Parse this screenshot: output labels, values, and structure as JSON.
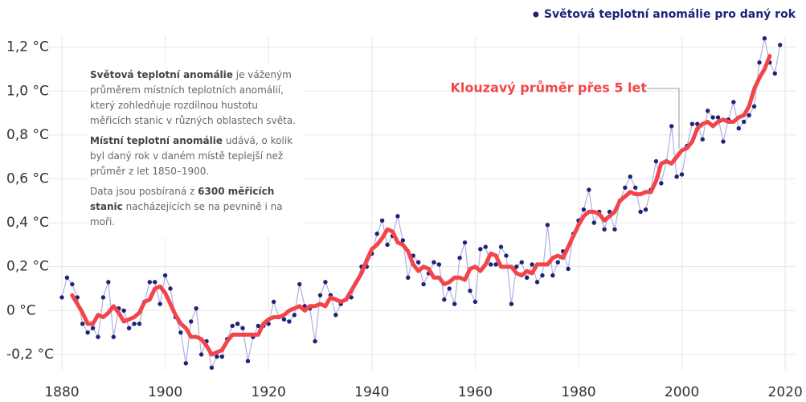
{
  "chart_data": {
    "type": "line",
    "note_paragraphs": [
      [
        {
          "text": "Světová teplotní anomálie",
          "bold": true
        },
        {
          "text": " je váženým průměrem místních teplotních anomálií, který zohledňuje rozdílnou hustotu měřicích stanic v různých oblastech světa.",
          "bold": false
        }
      ],
      [
        {
          "text": "Místní teplotní anomálie",
          "bold": true
        },
        {
          "text": " udává, o kolik byl daný rok v daném místě teplejší než průměr z let 1850–1900.",
          "bold": false
        }
      ],
      [
        {
          "text": "Data jsou posbíraná z ",
          "bold": false
        },
        {
          "text": "6300 měřicích stanic",
          "bold": true
        },
        {
          "text": " nacházejících se na pevnině i na moři.",
          "bold": false
        }
      ]
    ],
    "xlim": [
      1877,
      2022
    ],
    "xticks": [
      1880,
      1900,
      1920,
      1940,
      1960,
      1980,
      2000,
      2020
    ],
    "ylim": [
      -0.27,
      1.25
    ],
    "yticks": [
      {
        "value": -0.2,
        "label": "-0,2 °C"
      },
      {
        "value": 0,
        "label": "0 °C"
      },
      {
        "value": 0.2,
        "label": "0,2 °C"
      },
      {
        "value": 0.4,
        "label": "0,4 °C"
      },
      {
        "value": 0.6,
        "label": "0,6 °C"
      },
      {
        "value": 0.8,
        "label": "0,8 °C"
      },
      {
        "value": 1.0,
        "label": "1,0 °C"
      },
      {
        "value": 1.2,
        "label": "1,2 °C"
      }
    ],
    "grid": true,
    "legend": "top-right",
    "series": [
      {
        "name": "Světová teplotní anomálie pro daný rok",
        "color": "#1c2478",
        "line_color": "#aeb1dc",
        "markers": true,
        "x": [
          1880,
          1881,
          1882,
          1883,
          1884,
          1885,
          1886,
          1887,
          1888,
          1889,
          1890,
          1891,
          1892,
          1893,
          1894,
          1895,
          1896,
          1897,
          1898,
          1899,
          1900,
          1901,
          1902,
          1903,
          1904,
          1905,
          1906,
          1907,
          1908,
          1909,
          1910,
          1911,
          1912,
          1913,
          1914,
          1915,
          1916,
          1917,
          1918,
          1919,
          1920,
          1921,
          1922,
          1923,
          1924,
          1925,
          1926,
          1927,
          1928,
          1929,
          1930,
          1931,
          1932,
          1933,
          1934,
          1935,
          1936,
          1937,
          1938,
          1939,
          1940,
          1941,
          1942,
          1943,
          1944,
          1945,
          1946,
          1947,
          1948,
          1949,
          1950,
          1951,
          1952,
          1953,
          1954,
          1955,
          1956,
          1957,
          1958,
          1959,
          1960,
          1961,
          1962,
          1963,
          1964,
          1965,
          1966,
          1967,
          1968,
          1969,
          1970,
          1971,
          1972,
          1973,
          1974,
          1975,
          1976,
          1977,
          1978,
          1979,
          1980,
          1981,
          1982,
          1983,
          1984,
          1985,
          1986,
          1987,
          1988,
          1989,
          1990,
          1991,
          1992,
          1993,
          1994,
          1995,
          1996,
          1997,
          1998,
          1999,
          2000,
          2001,
          2002,
          2003,
          2004,
          2005,
          2006,
          2007,
          2008,
          2009,
          2010,
          2011,
          2012,
          2013,
          2014,
          2015,
          2016,
          2017,
          2018,
          2019
        ],
        "values": [
          0.06,
          0.15,
          0.12,
          0.06,
          -0.06,
          -0.1,
          -0.08,
          -0.12,
          0.06,
          0.13,
          -0.12,
          0.01,
          0.0,
          -0.08,
          -0.06,
          -0.06,
          0.04,
          0.13,
          0.13,
          0.03,
          0.16,
          0.1,
          -0.03,
          -0.1,
          -0.24,
          -0.05,
          0.01,
          -0.2,
          -0.14,
          -0.26,
          -0.21,
          -0.21,
          -0.13,
          -0.07,
          -0.06,
          -0.08,
          -0.23,
          -0.12,
          -0.07,
          -0.07,
          -0.06,
          0.04,
          -0.03,
          -0.04,
          -0.05,
          -0.02,
          0.12,
          0.02,
          0.01,
          -0.14,
          0.07,
          0.13,
          0.07,
          -0.02,
          0.03,
          0.05,
          0.06,
          0.13,
          0.2,
          0.2,
          0.26,
          0.35,
          0.41,
          0.3,
          0.34,
          0.43,
          0.32,
          0.15,
          0.25,
          0.22,
          0.12,
          0.17,
          0.22,
          0.21,
          0.05,
          0.1,
          0.03,
          0.24,
          0.31,
          0.09,
          0.04,
          0.28,
          0.29,
          0.21,
          0.21,
          0.29,
          0.25,
          0.03,
          0.2,
          0.22,
          0.15,
          0.21,
          0.13,
          0.16,
          0.39,
          0.16,
          0.22,
          0.27,
          0.19,
          0.35,
          0.41,
          0.46,
          0.55,
          0.4,
          0.45,
          0.37,
          0.45,
          0.37,
          0.5,
          0.56,
          0.61,
          0.56,
          0.45,
          0.46,
          0.55,
          0.68,
          0.58,
          0.68,
          0.84,
          0.61,
          0.62,
          0.75,
          0.85,
          0.85,
          0.78,
          0.91,
          0.88,
          0.88,
          0.77,
          0.87,
          0.95,
          0.83,
          0.86,
          0.89,
          0.93,
          1.13,
          1.24,
          1.13,
          1.08,
          1.21
        ]
      },
      {
        "name": "Klouzavý průměr přes 5 let",
        "color": "#f2454b",
        "markers": false,
        "x": [
          1882,
          1883,
          1884,
          1885,
          1886,
          1887,
          1888,
          1889,
          1890,
          1891,
          1892,
          1893,
          1894,
          1895,
          1896,
          1897,
          1898,
          1899,
          1900,
          1901,
          1902,
          1903,
          1904,
          1905,
          1906,
          1907,
          1908,
          1909,
          1910,
          1911,
          1912,
          1913,
          1914,
          1915,
          1916,
          1917,
          1918,
          1919,
          1920,
          1921,
          1922,
          1923,
          1924,
          1925,
          1926,
          1927,
          1928,
          1929,
          1930,
          1931,
          1932,
          1933,
          1934,
          1935,
          1936,
          1937,
          1938,
          1939,
          1940,
          1941,
          1942,
          1943,
          1944,
          1945,
          1946,
          1947,
          1948,
          1949,
          1950,
          1951,
          1952,
          1953,
          1954,
          1955,
          1956,
          1957,
          1958,
          1959,
          1960,
          1961,
          1962,
          1963,
          1964,
          1965,
          1966,
          1967,
          1968,
          1969,
          1970,
          1971,
          1972,
          1973,
          1974,
          1975,
          1976,
          1977,
          1978,
          1979,
          1980,
          1981,
          1982,
          1983,
          1984,
          1985,
          1986,
          1987,
          1988,
          1989,
          1990,
          1991,
          1992,
          1993,
          1994,
          1995,
          1996,
          1997,
          1998,
          1999,
          2000,
          2001,
          2002,
          2003,
          2004,
          2005,
          2006,
          2007,
          2008,
          2009,
          2010,
          2011,
          2012,
          2013,
          2014,
          2015,
          2016,
          2017
        ],
        "values": [
          0.07,
          0.03,
          -0.01,
          -0.06,
          -0.06,
          -0.02,
          -0.03,
          -0.01,
          0.02,
          -0.01,
          -0.05,
          -0.04,
          -0.03,
          -0.01,
          0.04,
          0.05,
          0.1,
          0.11,
          0.08,
          0.03,
          -0.02,
          -0.06,
          -0.08,
          -0.12,
          -0.12,
          -0.13,
          -0.16,
          -0.2,
          -0.19,
          -0.18,
          -0.14,
          -0.11,
          -0.11,
          -0.11,
          -0.11,
          -0.11,
          -0.11,
          -0.06,
          -0.04,
          -0.03,
          -0.03,
          -0.02,
          0.0,
          0.01,
          0.02,
          0.0,
          0.02,
          0.02,
          0.03,
          0.02,
          0.06,
          0.05,
          0.04,
          0.05,
          0.09,
          0.13,
          0.17,
          0.23,
          0.28,
          0.3,
          0.33,
          0.37,
          0.36,
          0.31,
          0.3,
          0.27,
          0.21,
          0.18,
          0.2,
          0.19,
          0.15,
          0.15,
          0.12,
          0.13,
          0.15,
          0.15,
          0.14,
          0.19,
          0.2,
          0.18,
          0.21,
          0.26,
          0.25,
          0.2,
          0.2,
          0.2,
          0.17,
          0.16,
          0.18,
          0.17,
          0.21,
          0.21,
          0.21,
          0.24,
          0.25,
          0.24,
          0.29,
          0.34,
          0.39,
          0.43,
          0.45,
          0.45,
          0.44,
          0.41,
          0.43,
          0.45,
          0.5,
          0.52,
          0.54,
          0.53,
          0.53,
          0.54,
          0.54,
          0.59,
          0.67,
          0.68,
          0.67,
          0.7,
          0.73,
          0.74,
          0.77,
          0.83,
          0.85,
          0.86,
          0.84,
          0.86,
          0.87,
          0.86,
          0.86,
          0.88,
          0.89,
          0.93,
          1.01,
          1.06,
          1.1,
          1.16
        ]
      }
    ]
  }
}
